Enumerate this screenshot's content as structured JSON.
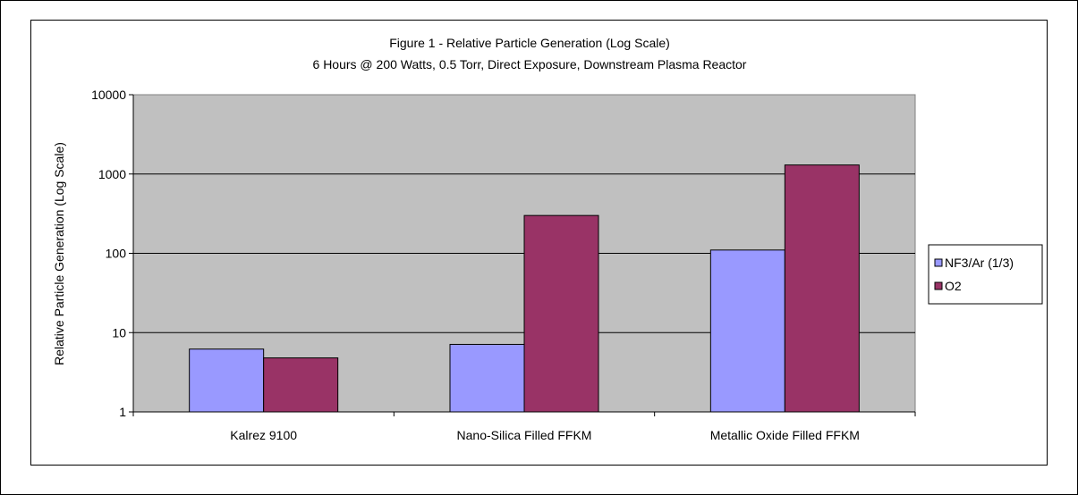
{
  "chart_data": {
    "type": "bar",
    "title": "Figure 1 - Relative Particle Generation (Log Scale)",
    "subtitle": "6 Hours @ 200 Watts, 0.5 Torr, Direct Exposure, Downstream Plasma Reactor",
    "xlabel": "",
    "ylabel": "Relative Particle Generation (Log Scale)",
    "yscale": "log",
    "ylim": [
      1,
      10000
    ],
    "yticks": [
      "1",
      "10",
      "100",
      "1000",
      "10000"
    ],
    "categories": [
      "Kalrez 9100",
      "Nano-Silica Filled FFKM",
      "Metallic Oxide Filled FFKM"
    ],
    "series": [
      {
        "name": "NF3/Ar (1/3)",
        "color": "#9999ff",
        "values": [
          6.2,
          7.1,
          110
        ]
      },
      {
        "name": "O2",
        "color": "#993366",
        "values": [
          4.8,
          300,
          1300
        ]
      }
    ],
    "grid": true,
    "plot_background": "#c0c0c0",
    "legend_position": "right"
  }
}
